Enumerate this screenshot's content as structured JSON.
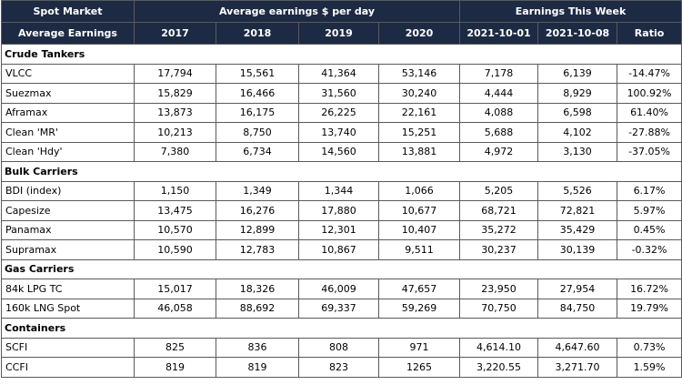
{
  "header": {
    "spot_market": "Spot Market",
    "avg_earnings_per_day": "Average earnings $ per day",
    "earnings_this_week": "Earnings This Week",
    "average_earnings": "Average Earnings",
    "columns": [
      "2017",
      "2018",
      "2019",
      "2020",
      "2021-10-01",
      "2021-10-08",
      "Ratio"
    ]
  },
  "sections": [
    {
      "title": "Crude Tankers",
      "rows": [
        {
          "name": "VLCC",
          "values": [
            "17,794",
            "15,561",
            "41,364",
            "53,146",
            "7,178",
            "6,139",
            "-14.47%"
          ]
        },
        {
          "name": "Suezmax",
          "values": [
            "15,829",
            "16,466",
            "31,560",
            "30,240",
            "4,444",
            "8,929",
            "100.92%"
          ]
        },
        {
          "name": "Aframax",
          "values": [
            "13,873",
            "16,175",
            "26,225",
            "22,161",
            "4,088",
            "6,598",
            "61.40%"
          ]
        },
        {
          "name": "Clean 'MR'",
          "values": [
            "10,213",
            "8,750",
            "13,740",
            "15,251",
            "5,688",
            "4,102",
            "-27.88%"
          ]
        },
        {
          "name": "Clean 'Hdy'",
          "values": [
            "7,380",
            "6,734",
            "14,560",
            "13,881",
            "4,972",
            "3,130",
            "-37.05%"
          ]
        }
      ]
    },
    {
      "title": "Bulk Carriers",
      "rows": [
        {
          "name": "BDI (index)",
          "values": [
            "1,150",
            "1,349",
            "1,344",
            "1,066",
            "5,205",
            "5,526",
            "6.17%"
          ]
        },
        {
          "name": "Capesize",
          "values": [
            "13,475",
            "16,276",
            "17,880",
            "10,677",
            "68,721",
            "72,821",
            "5.97%"
          ]
        },
        {
          "name": "Panamax",
          "values": [
            "10,570",
            "12,899",
            "12,301",
            "10,407",
            "35,272",
            "35,429",
            "0.45%"
          ]
        },
        {
          "name": "Supramax",
          "values": [
            "10,590",
            "12,783",
            "10,867",
            "9,511",
            "30,237",
            "30,139",
            "-0.32%"
          ]
        }
      ]
    },
    {
      "title": "Gas Carriers",
      "rows": [
        {
          "name": "84k LPG TC",
          "values": [
            "15,017",
            "18,326",
            "46,009",
            "47,657",
            "23,950",
            "27,954",
            "16.72%"
          ]
        },
        {
          "name": "160k LNG Spot",
          "values": [
            "46,058",
            "88,692",
            "69,337",
            "59,269",
            "70,750",
            "84,750",
            "19.79%"
          ]
        }
      ]
    },
    {
      "title": "Containers",
      "rows": [
        {
          "name": "SCFI",
          "values": [
            "825",
            "836",
            "808",
            "971",
            "4,614.10",
            "4,647.60",
            "0.73%"
          ]
        },
        {
          "name": "CCFI",
          "values": [
            "819",
            "819",
            "823",
            "1265",
            "3,220.55",
            "3,271.70",
            "1.59%"
          ]
        }
      ]
    }
  ]
}
